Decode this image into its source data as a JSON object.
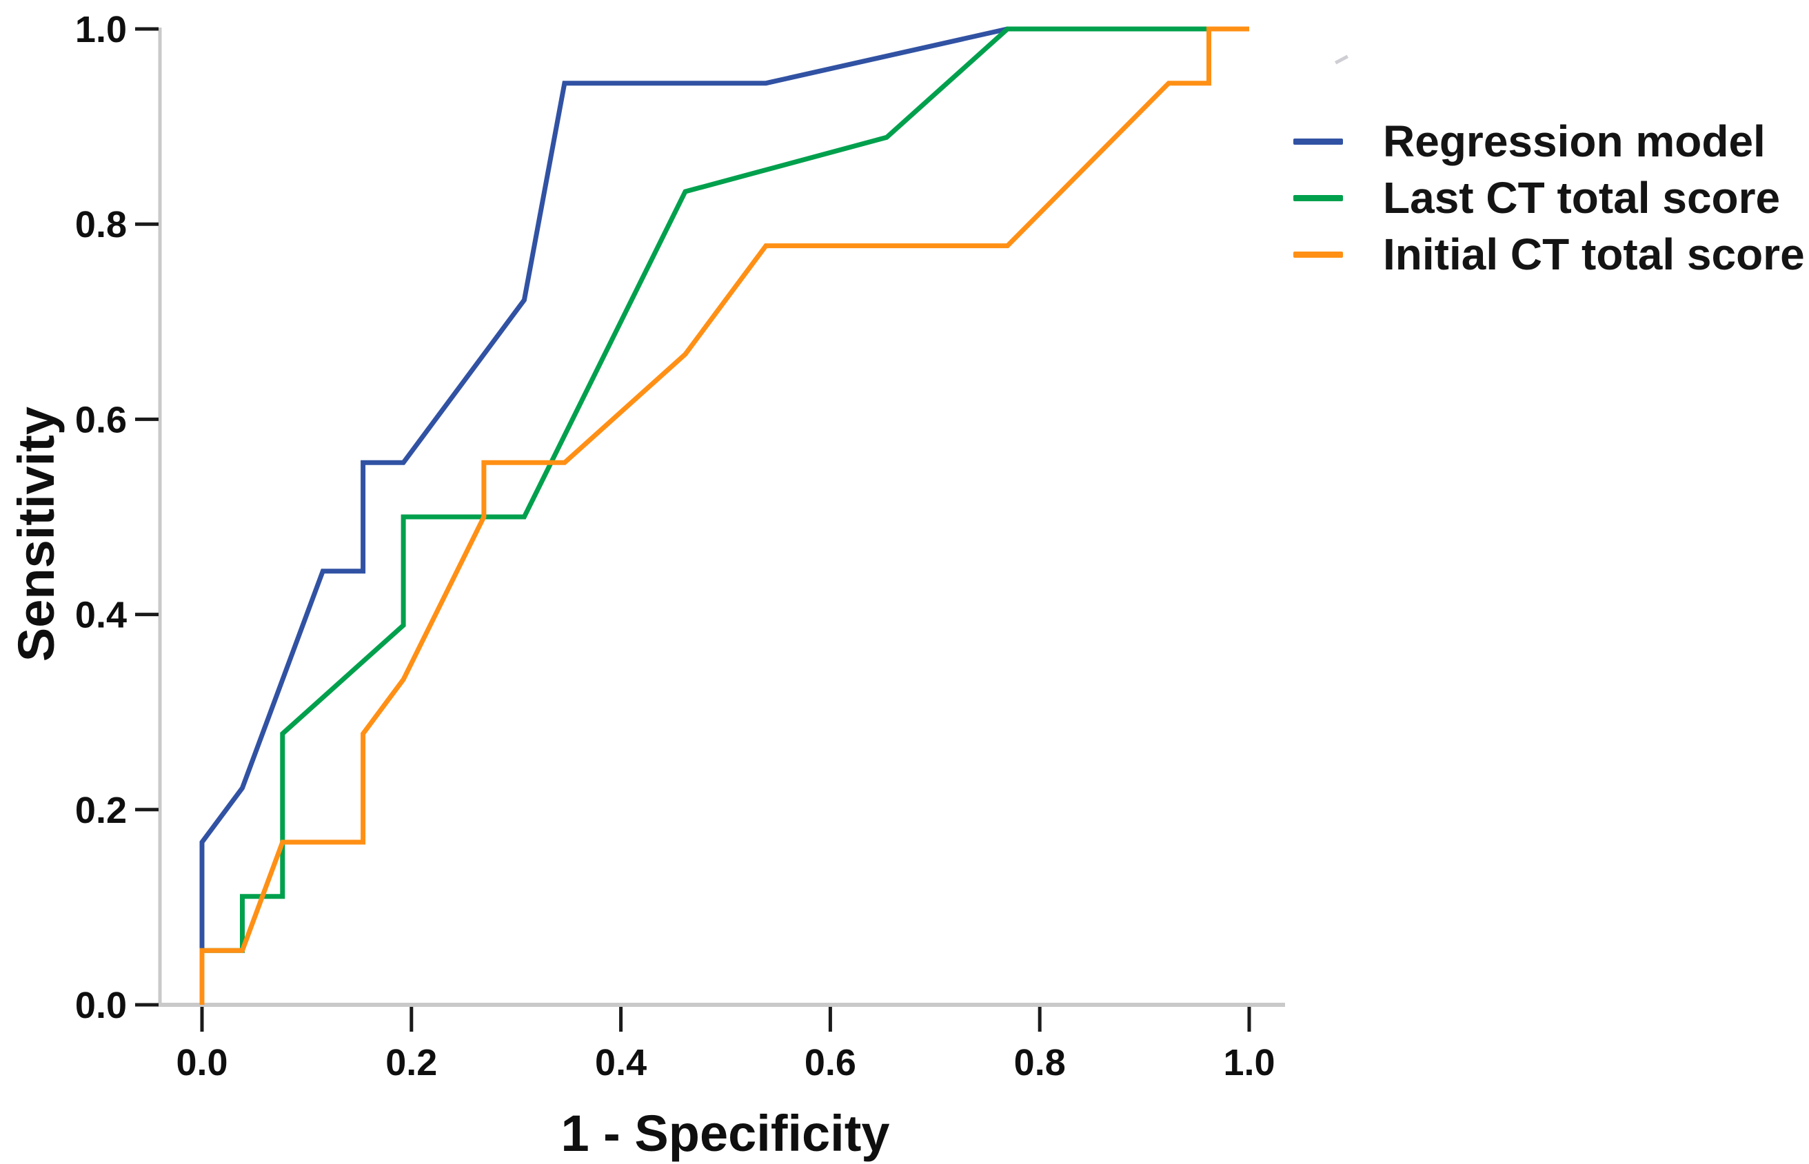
{
  "chart_data": {
    "type": "line",
    "subtype": "roc-curves",
    "title": "",
    "xlabel": "1 - Specificity",
    "ylabel": "Sensitivity",
    "xlim": [
      0.0,
      1.0
    ],
    "ylim": [
      0.0,
      1.0
    ],
    "x_ticks": [
      "0.0",
      "0.2",
      "0.4",
      "0.6",
      "0.8",
      "1.0"
    ],
    "y_ticks": [
      "0.0",
      "0.2",
      "0.4",
      "0.6",
      "0.8",
      "1.0"
    ],
    "grid": false,
    "legend_position": "outside-top-right",
    "axis_line_color": "#c9c9c9",
    "tick_color": "#1a1a1a",
    "text_color": "#0f0f0f",
    "series": [
      {
        "name": "Regression model",
        "color": "#3152A3",
        "points": [
          [
            0.0,
            0.0
          ],
          [
            0.0,
            0.1667
          ],
          [
            0.0385,
            0.2222
          ],
          [
            0.1154,
            0.4444
          ],
          [
            0.1538,
            0.4444
          ],
          [
            0.1538,
            0.5556
          ],
          [
            0.1923,
            0.5556
          ],
          [
            0.3077,
            0.7222
          ],
          [
            0.3462,
            0.9444
          ],
          [
            0.5385,
            0.9444
          ],
          [
            0.7692,
            1.0
          ],
          [
            1.0,
            1.0
          ]
        ]
      },
      {
        "name": "Last CT total score",
        "color": "#00A04D",
        "points": [
          [
            0.0,
            0.0
          ],
          [
            0.0,
            0.0556
          ],
          [
            0.0385,
            0.0556
          ],
          [
            0.0385,
            0.1111
          ],
          [
            0.0769,
            0.1111
          ],
          [
            0.0769,
            0.2778
          ],
          [
            0.1923,
            0.3889
          ],
          [
            0.1923,
            0.5
          ],
          [
            0.3077,
            0.5
          ],
          [
            0.4615,
            0.8333
          ],
          [
            0.6538,
            0.8889
          ],
          [
            0.7692,
            1.0
          ],
          [
            1.0,
            1.0
          ]
        ]
      },
      {
        "name": "Initial CT total score",
        "color": "#FF9015",
        "points": [
          [
            0.0,
            0.0
          ],
          [
            0.0,
            0.0556
          ],
          [
            0.0385,
            0.0556
          ],
          [
            0.0769,
            0.1667
          ],
          [
            0.1538,
            0.1667
          ],
          [
            0.1538,
            0.2778
          ],
          [
            0.1923,
            0.3333
          ],
          [
            0.2692,
            0.5
          ],
          [
            0.2692,
            0.5556
          ],
          [
            0.3462,
            0.5556
          ],
          [
            0.4615,
            0.6667
          ],
          [
            0.5385,
            0.7778
          ],
          [
            0.7692,
            0.7778
          ],
          [
            0.9231,
            0.9444
          ],
          [
            0.9615,
            0.9444
          ],
          [
            0.9615,
            1.0
          ],
          [
            1.0,
            1.0
          ]
        ]
      }
    ]
  }
}
